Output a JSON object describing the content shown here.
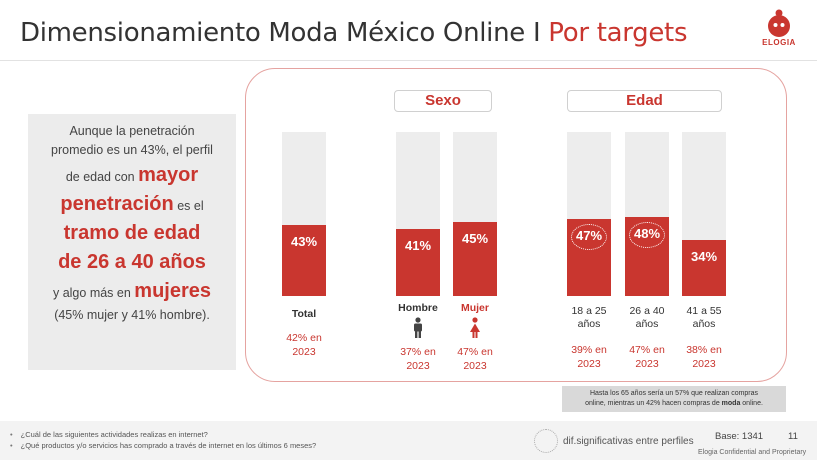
{
  "header": {
    "title_main": "Dimensionamiento Moda México Online I ",
    "title_accent": "Por targets",
    "logo_text": "ELOGIA"
  },
  "summary": {
    "line1": "Aunque la penetración",
    "line2": "promedio es un 43%, el perfil",
    "line3_pre": "de edad con ",
    "line3_big": "mayor",
    "line4_big": "penetración",
    "line4_post": " es el",
    "line5_big": "tramo de edad",
    "line6_big": "de 26 a 40 años",
    "line7_pre": "y algo más en ",
    "line7_big": "mujeres",
    "line8": "(45% mujer y 41% hombre)."
  },
  "groups": {
    "sexo": "Sexo",
    "edad": "Edad"
  },
  "chart_data": {
    "type": "bar",
    "categories": [
      "Total",
      "Hombre",
      "Mujer",
      "18 a 25 años",
      "26 a 40 años",
      "41 a 55 años"
    ],
    "values": [
      43,
      41,
      45,
      47,
      48,
      34
    ],
    "ylim": [
      0,
      100
    ],
    "unit": "%"
  },
  "bars": [
    {
      "value_label": "43%",
      "category": "Total",
      "stat": "42% en 2023",
      "highlight": false
    },
    {
      "value_label": "41%",
      "category": "Hombre",
      "stat": "37% en 2023",
      "highlight": false
    },
    {
      "value_label": "45%",
      "category": "Mujer",
      "stat": "47% en 2023",
      "highlight": false
    },
    {
      "value_label": "47%",
      "category": "18 a 25 años",
      "stat": "39% en 2023",
      "highlight": true
    },
    {
      "value_label": "48%",
      "category": "26 a 40 años",
      "stat": "47% en 2023",
      "highlight": true
    },
    {
      "value_label": "34%",
      "category": "41 a 55 años",
      "stat": "38% en 2023",
      "highlight": false
    }
  ],
  "labels": {
    "total": "Total",
    "hombre": "Hombre",
    "mujer": "Mujer",
    "age1a": "18 a 25",
    "age1b": "años",
    "age2a": "26 a 40",
    "age2b": "años",
    "age3a": "41 a 55",
    "age3b": "años"
  },
  "stats": {
    "total_a": "42% en",
    "total_b": "2023",
    "hombre_a": "37% en",
    "hombre_b": "2023",
    "mujer_a": "47% en",
    "mujer_b": "2023",
    "age1_a": "39% en",
    "age1_b": "2023",
    "age2_a": "47% en",
    "age2_b": "2023",
    "age3_a": "38% en",
    "age3_b": "2023"
  },
  "note": {
    "line1": "Hasta los 65 años sería un 57% que realizan compras",
    "line2_pre": "online, mientras un 42% hacen compras de ",
    "line2_bold": "moda",
    "line2_post": " online."
  },
  "footer": {
    "q1": "¿Cuál de las siguientes actividades realizas en internet?",
    "q2": "¿Qué productos y/o servicios has comprado a través de internet en los últimos 6 meses?",
    "significance": "dif.significativas entre perfiles",
    "base": "Base: 1341",
    "page": "11",
    "confidential": "Elogia Confidential and Proprietary"
  },
  "colors": {
    "accent": "#c9362f",
    "bar_bg": "#ededed",
    "frame": "#e5a3a0"
  },
  "icons": [
    "male-person-icon",
    "female-person-icon",
    "significance-dotted-circle-icon",
    "elogia-logo"
  ]
}
